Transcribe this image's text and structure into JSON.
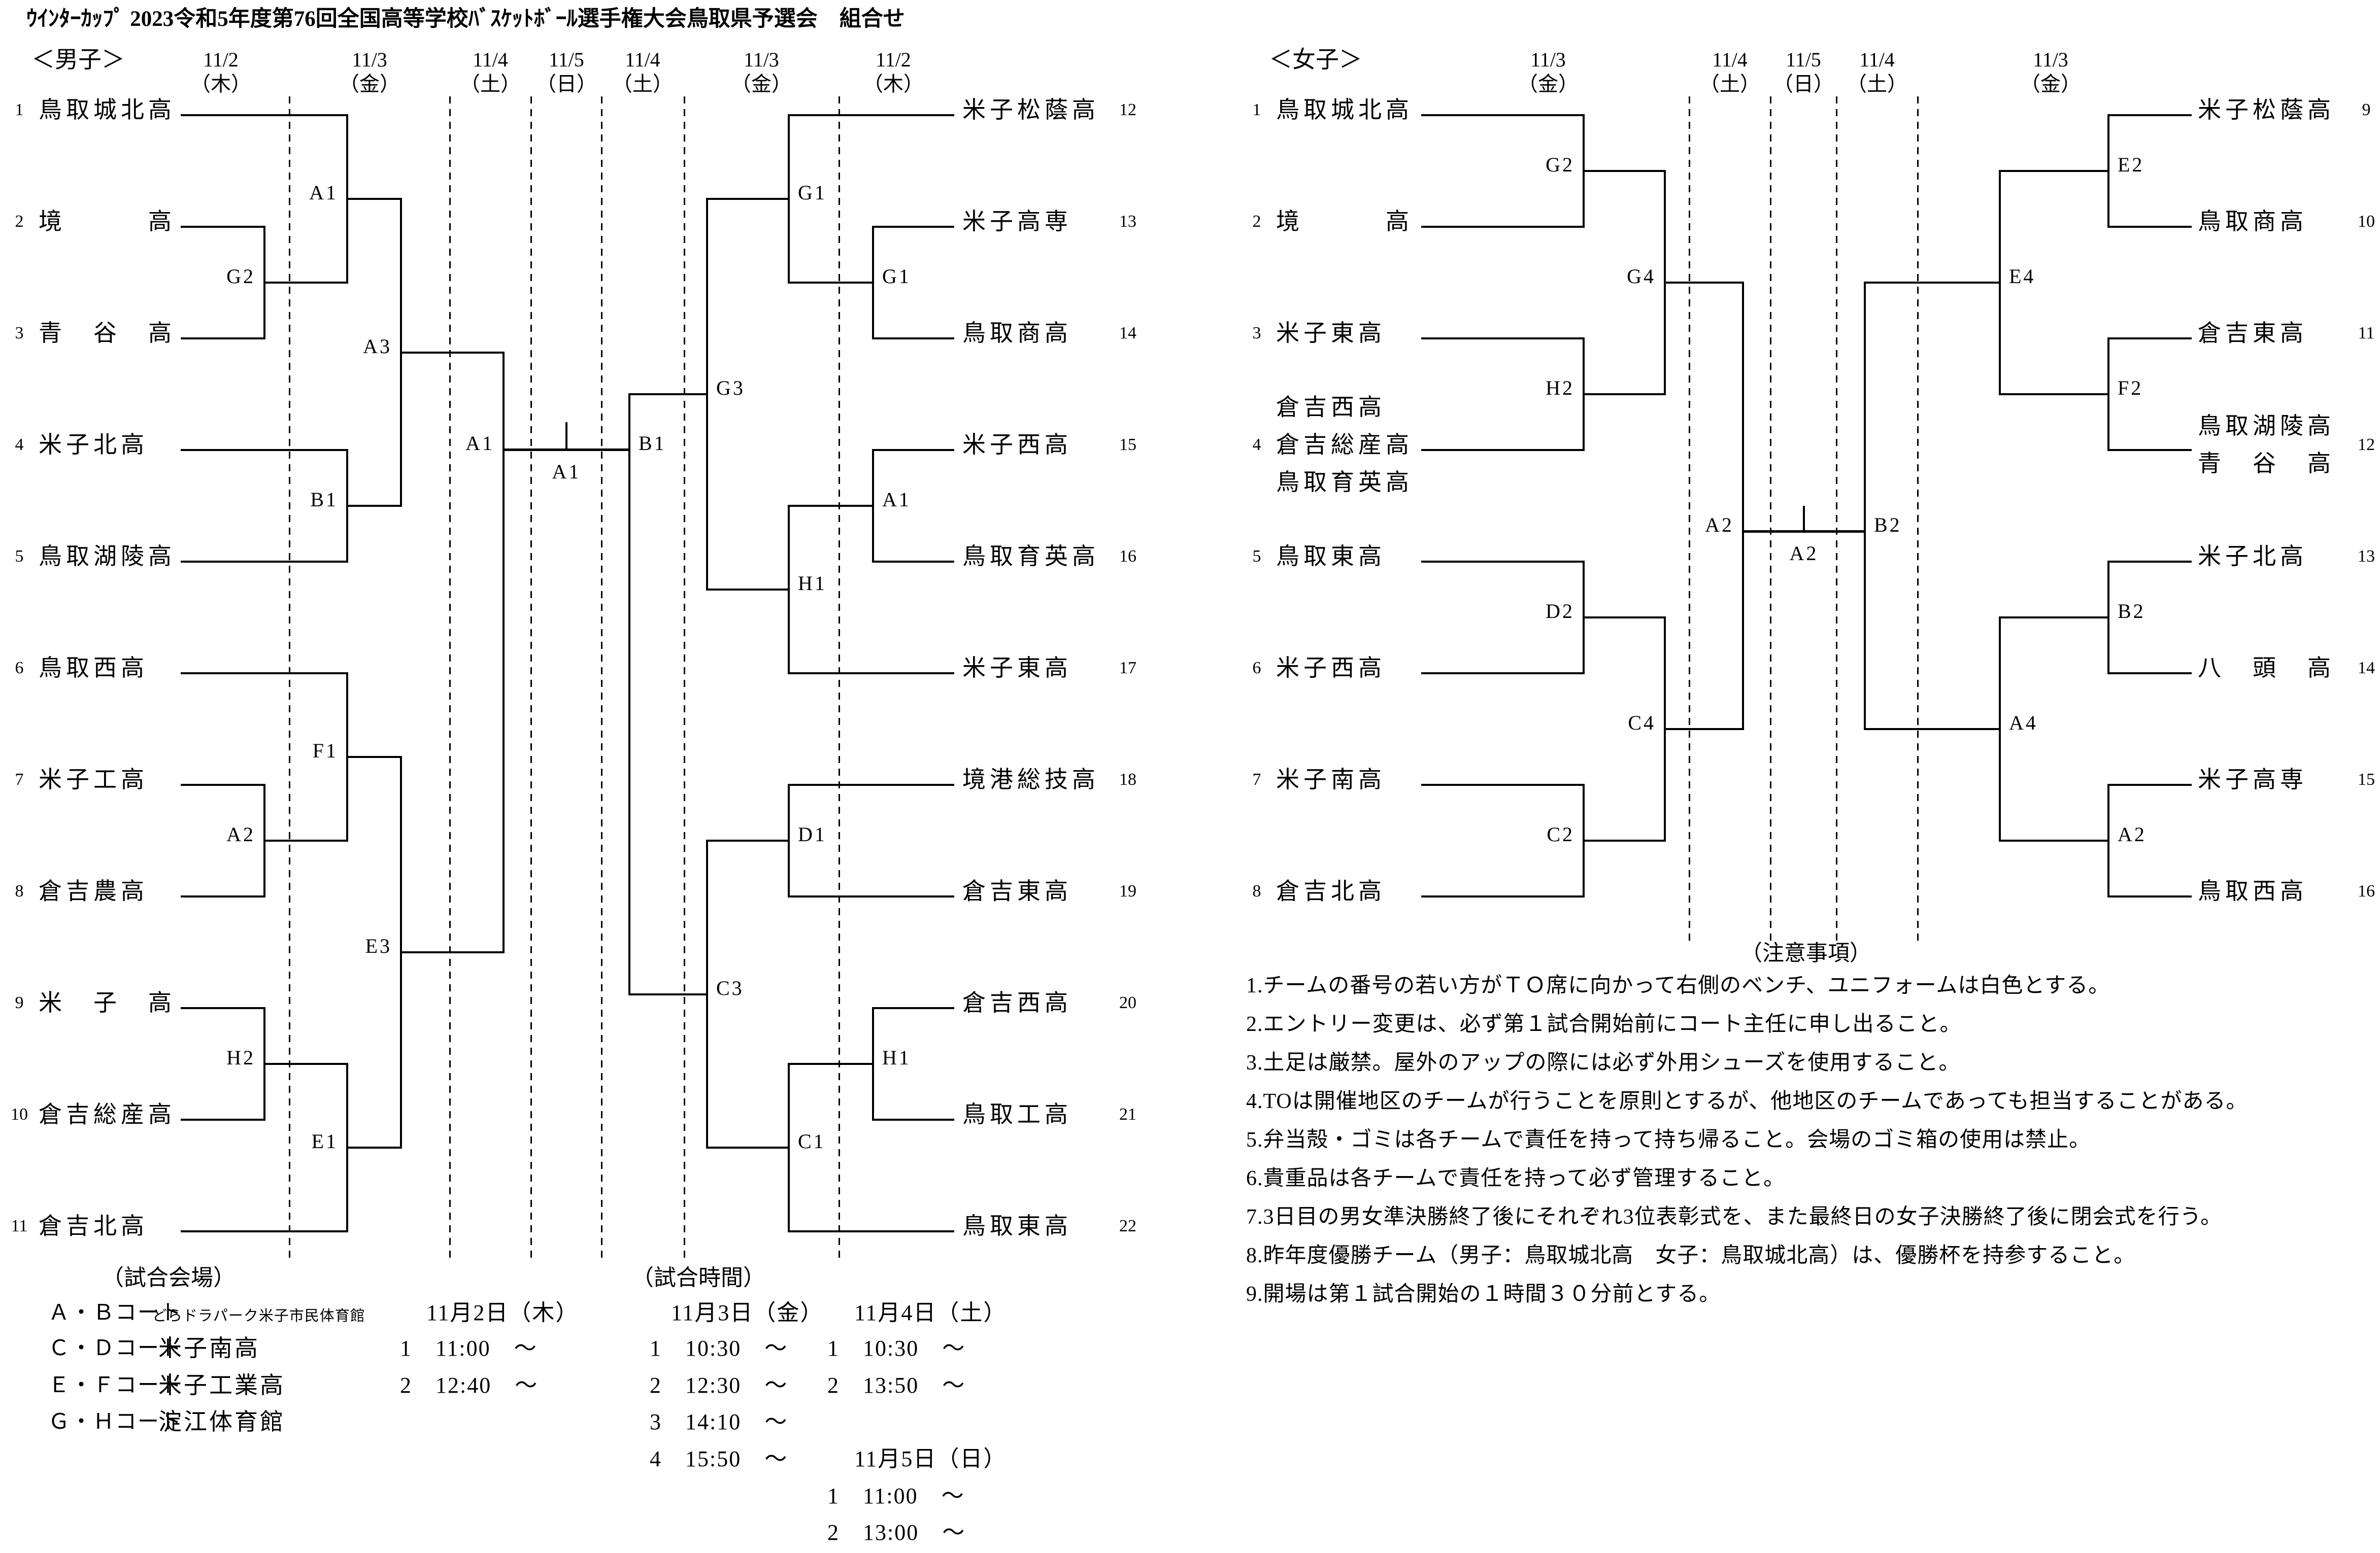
{
  "title": "ｳｲﾝﾀｰｶｯﾌﾟ 2023令和5年度第76回全国高等学校ﾊﾞｽｹｯﾄﾎﾞｰﾙ選手権大会鳥取県予選会　組合せ",
  "men": {
    "header": "＜男子＞",
    "dates": [
      [
        "11/2",
        "（木）"
      ],
      [
        "11/3",
        "（金）"
      ],
      [
        "11/4",
        "（土）"
      ],
      [
        "11/5",
        "（日）"
      ],
      [
        "11/4",
        "（土）"
      ],
      [
        "11/3",
        "（金）"
      ],
      [
        "11/2",
        "（木）"
      ]
    ],
    "teams_left": [
      {
        "no": "1",
        "lines": [
          "鳥取城北高"
        ]
      },
      {
        "no": "2",
        "lines": [
          "境　　　高"
        ]
      },
      {
        "no": "3",
        "lines": [
          "青　谷　高"
        ]
      },
      {
        "no": "4",
        "lines": [
          "米子北高"
        ]
      },
      {
        "no": "5",
        "lines": [
          "鳥取湖陵高"
        ]
      },
      {
        "no": "6",
        "lines": [
          "鳥取西高"
        ]
      },
      {
        "no": "7",
        "lines": [
          "米子工高"
        ]
      },
      {
        "no": "8",
        "lines": [
          "倉吉農高"
        ]
      },
      {
        "no": "9",
        "lines": [
          "米　子　高"
        ]
      },
      {
        "no": "10",
        "lines": [
          "倉吉総産高"
        ]
      },
      {
        "no": "11",
        "lines": [
          "倉吉北高"
        ]
      }
    ],
    "teams_right": [
      {
        "no": "12",
        "lines": [
          "米子松蔭高"
        ]
      },
      {
        "no": "13",
        "lines": [
          "米子高専"
        ]
      },
      {
        "no": "14",
        "lines": [
          "鳥取商高"
        ]
      },
      {
        "no": "15",
        "lines": [
          "米子西高"
        ]
      },
      {
        "no": "16",
        "lines": [
          "鳥取育英高"
        ]
      },
      {
        "no": "17",
        "lines": [
          "米子東高"
        ]
      },
      {
        "no": "18",
        "lines": [
          "境港総技高"
        ]
      },
      {
        "no": "19",
        "lines": [
          "倉吉東高"
        ]
      },
      {
        "no": "20",
        "lines": [
          "倉吉西高"
        ]
      },
      {
        "no": "21",
        "lines": [
          "鳥取工高"
        ]
      },
      {
        "no": "22",
        "lines": [
          "鳥取東高"
        ]
      }
    ],
    "matches_left": [
      {
        "id": "ML-G2",
        "label": "G2",
        "col": 0,
        "top": "T1",
        "bottom": "T2"
      },
      {
        "id": "ML-A2",
        "label": "A2",
        "col": 0,
        "top": "T6",
        "bottom": "T7"
      },
      {
        "id": "ML-H2",
        "label": "H2",
        "col": 0,
        "top": "T8",
        "bottom": "T9"
      },
      {
        "id": "ML-A1",
        "label": "A1",
        "col": 1,
        "top": "T0",
        "bottom": "ML-G2"
      },
      {
        "id": "ML-B1",
        "label": "B1",
        "col": 1,
        "top": "T3",
        "bottom": "T4"
      },
      {
        "id": "ML-F1",
        "label": "F1",
        "col": 1,
        "top": "T5",
        "bottom": "ML-A2"
      },
      {
        "id": "ML-E1",
        "label": "E1",
        "col": 1,
        "top": "ML-H2",
        "bottom": "T10"
      },
      {
        "id": "ML-A3",
        "label": "A3",
        "col": 2,
        "top": "ML-A1",
        "bottom": "ML-B1"
      },
      {
        "id": "ML-E3",
        "label": "E3",
        "col": 2,
        "top": "ML-F1",
        "bottom": "ML-E1"
      },
      {
        "id": "ML-SF",
        "label": "A1",
        "col": 3,
        "top": "ML-A3",
        "bottom": "ML-E3",
        "semi": true
      }
    ],
    "matches_right": [
      {
        "id": "MR-G1a",
        "label": "G1",
        "col": 0,
        "top": "T1",
        "bottom": "T2"
      },
      {
        "id": "MR-A1a",
        "label": "A1",
        "col": 0,
        "top": "T3",
        "bottom": "T4"
      },
      {
        "id": "MR-H1a",
        "label": "H1",
        "col": 0,
        "top": "T8",
        "bottom": "T9"
      },
      {
        "id": "MR-G1b",
        "label": "G1",
        "col": 1,
        "top": "T0",
        "bottom": "MR-G1a"
      },
      {
        "id": "MR-H1b",
        "label": "H1",
        "col": 1,
        "top": "MR-A1a",
        "bottom": "T5"
      },
      {
        "id": "MR-D1",
        "label": "D1",
        "col": 1,
        "top": "T6",
        "bottom": "T7"
      },
      {
        "id": "MR-C1",
        "label": "C1",
        "col": 1,
        "top": "MR-H1a",
        "bottom": "T10"
      },
      {
        "id": "MR-G3",
        "label": "G3",
        "col": 2,
        "top": "MR-G1b",
        "bottom": "MR-H1b"
      },
      {
        "id": "MR-C3",
        "label": "C3",
        "col": 2,
        "top": "MR-D1",
        "bottom": "MR-C1"
      },
      {
        "id": "MR-SF",
        "label": "B1",
        "col": 3,
        "top": "MR-G3",
        "bottom": "MR-C3",
        "semi": true
      }
    ],
    "final_label": "A1"
  },
  "women": {
    "header": "＜女子＞",
    "dates": [
      [
        "11/3",
        "（金）"
      ],
      [
        "11/4",
        "（土）"
      ],
      [
        "11/5",
        "（日）"
      ],
      [
        "11/4",
        "（土）"
      ],
      [
        "11/3",
        "（金）"
      ]
    ],
    "teams_left": [
      {
        "no": "1",
        "lines": [
          "鳥取城北高"
        ]
      },
      {
        "no": "2",
        "lines": [
          "境　　　高"
        ]
      },
      {
        "no": "3",
        "lines": [
          "米子東高"
        ]
      },
      {
        "no": "4",
        "lines": [
          "倉吉西高",
          "倉吉総産高",
          "鳥取育英高"
        ]
      },
      {
        "no": "5",
        "lines": [
          "鳥取東高"
        ]
      },
      {
        "no": "6",
        "lines": [
          "米子西高"
        ]
      },
      {
        "no": "7",
        "lines": [
          "米子南高"
        ]
      },
      {
        "no": "8",
        "lines": [
          "倉吉北高"
        ]
      }
    ],
    "teams_right": [
      {
        "no": "9",
        "lines": [
          "米子松蔭高"
        ]
      },
      {
        "no": "10",
        "lines": [
          "鳥取商高"
        ]
      },
      {
        "no": "11",
        "lines": [
          "倉吉東高"
        ]
      },
      {
        "no": "12",
        "lines": [
          "鳥取湖陵高",
          "青　谷　高"
        ]
      },
      {
        "no": "13",
        "lines": [
          "米子北高"
        ]
      },
      {
        "no": "14",
        "lines": [
          "八　頭　高"
        ]
      },
      {
        "no": "15",
        "lines": [
          "米子高専"
        ]
      },
      {
        "no": "16",
        "lines": [
          "鳥取西高"
        ]
      }
    ],
    "matches_left": [
      {
        "id": "WL-G2",
        "label": "G2",
        "col": 0,
        "top": "T0",
        "bottom": "T1"
      },
      {
        "id": "WL-H2",
        "label": "H2",
        "col": 0,
        "top": "T2",
        "bottom": "T3"
      },
      {
        "id": "WL-D2",
        "label": "D2",
        "col": 0,
        "top": "T4",
        "bottom": "T5"
      },
      {
        "id": "WL-C2",
        "label": "C2",
        "col": 0,
        "top": "T6",
        "bottom": "T7"
      },
      {
        "id": "WL-G4",
        "label": "G4",
        "col": 1,
        "top": "WL-G2",
        "bottom": "WL-H2"
      },
      {
        "id": "WL-C4",
        "label": "C4",
        "col": 1,
        "top": "WL-D2",
        "bottom": "WL-C2"
      },
      {
        "id": "WL-SF",
        "label": "A2",
        "col": 2,
        "top": "WL-G4",
        "bottom": "WL-C4",
        "semi": true
      }
    ],
    "matches_right": [
      {
        "id": "WR-E2",
        "label": "E2",
        "col": 0,
        "top": "T0",
        "bottom": "T1"
      },
      {
        "id": "WR-F2",
        "label": "F2",
        "col": 0,
        "top": "T2",
        "bottom": "T3"
      },
      {
        "id": "WR-B2",
        "label": "B2",
        "col": 0,
        "top": "T4",
        "bottom": "T5"
      },
      {
        "id": "WR-A2",
        "label": "A2",
        "col": 0,
        "top": "T6",
        "bottom": "T7"
      },
      {
        "id": "WR-E4",
        "label": "E4",
        "col": 1,
        "top": "WR-E2",
        "bottom": "WR-F2"
      },
      {
        "id": "WR-A4",
        "label": "A4",
        "col": 1,
        "top": "WR-B2",
        "bottom": "WR-A2"
      },
      {
        "id": "WR-SF",
        "label": "B2",
        "col": 2,
        "top": "WR-E4",
        "bottom": "WR-A4",
        "semi": true
      }
    ],
    "final_label": "A2"
  },
  "venues": {
    "title": "（試合会場）",
    "rows": [
      {
        "court": "Ａ・Ｂコート",
        "name": "どらドラパーク米子市民体育館",
        "small": true
      },
      {
        "court": "Ｃ・Ｄコート",
        "name": "米子南高",
        "small": false
      },
      {
        "court": "Ｅ・Ｆコート",
        "name": "米子工業高",
        "small": false
      },
      {
        "court": "Ｇ・Ｈコート",
        "name": "淀江体育館",
        "small": false
      }
    ]
  },
  "times": {
    "title": "（試合時間）",
    "blocks": [
      {
        "date": "11月2日（木）",
        "rows": [
          "1　11:00　～",
          "2　12:40　～"
        ]
      },
      {
        "date": "11月3日（金）",
        "rows": [
          "1　10:30　～",
          "2　12:30　～",
          "3　14:10　～",
          "4　15:50　～"
        ]
      },
      {
        "date": "11月4日（土）",
        "rows": [
          "1　10:30　～",
          "2　13:50　～"
        ]
      },
      {
        "date": "11月5日（日）",
        "rows": [
          "1　11:00　～",
          "2　13:00　～"
        ]
      }
    ]
  },
  "notes": {
    "title": "（注意事項）",
    "items": [
      "1.チームの番号の若い方がＴＯ席に向かって右側のベンチ、ユニフォームは白色とする。",
      "2.エントリー変更は、必ず第１試合開始前にコート主任に申し出ること。",
      "3.土足は厳禁。屋外のアップの際には必ず外用シューズを使用すること。",
      "4.TOは開催地区のチームが行うことを原則とするが、他地区のチームであっても担当することがある。",
      "5.弁当殻・ゴミは各チームで責任を持って持ち帰ること。会場のゴミ箱の使用は禁止。",
      "6.貴重品は各チームで責任を持って必ず管理すること。",
      "7.3日目の男女準決勝終了後にそれぞれ3位表彰式を、また最終日の女子決勝終了後に閉会式を行う。",
      "8.昨年度優勝チーム（男子：鳥取城北高　女子：鳥取城北高）は、優勝杯を持参すること。",
      "9.開場は第１試合開始の１時間３０分前とする。"
    ]
  }
}
